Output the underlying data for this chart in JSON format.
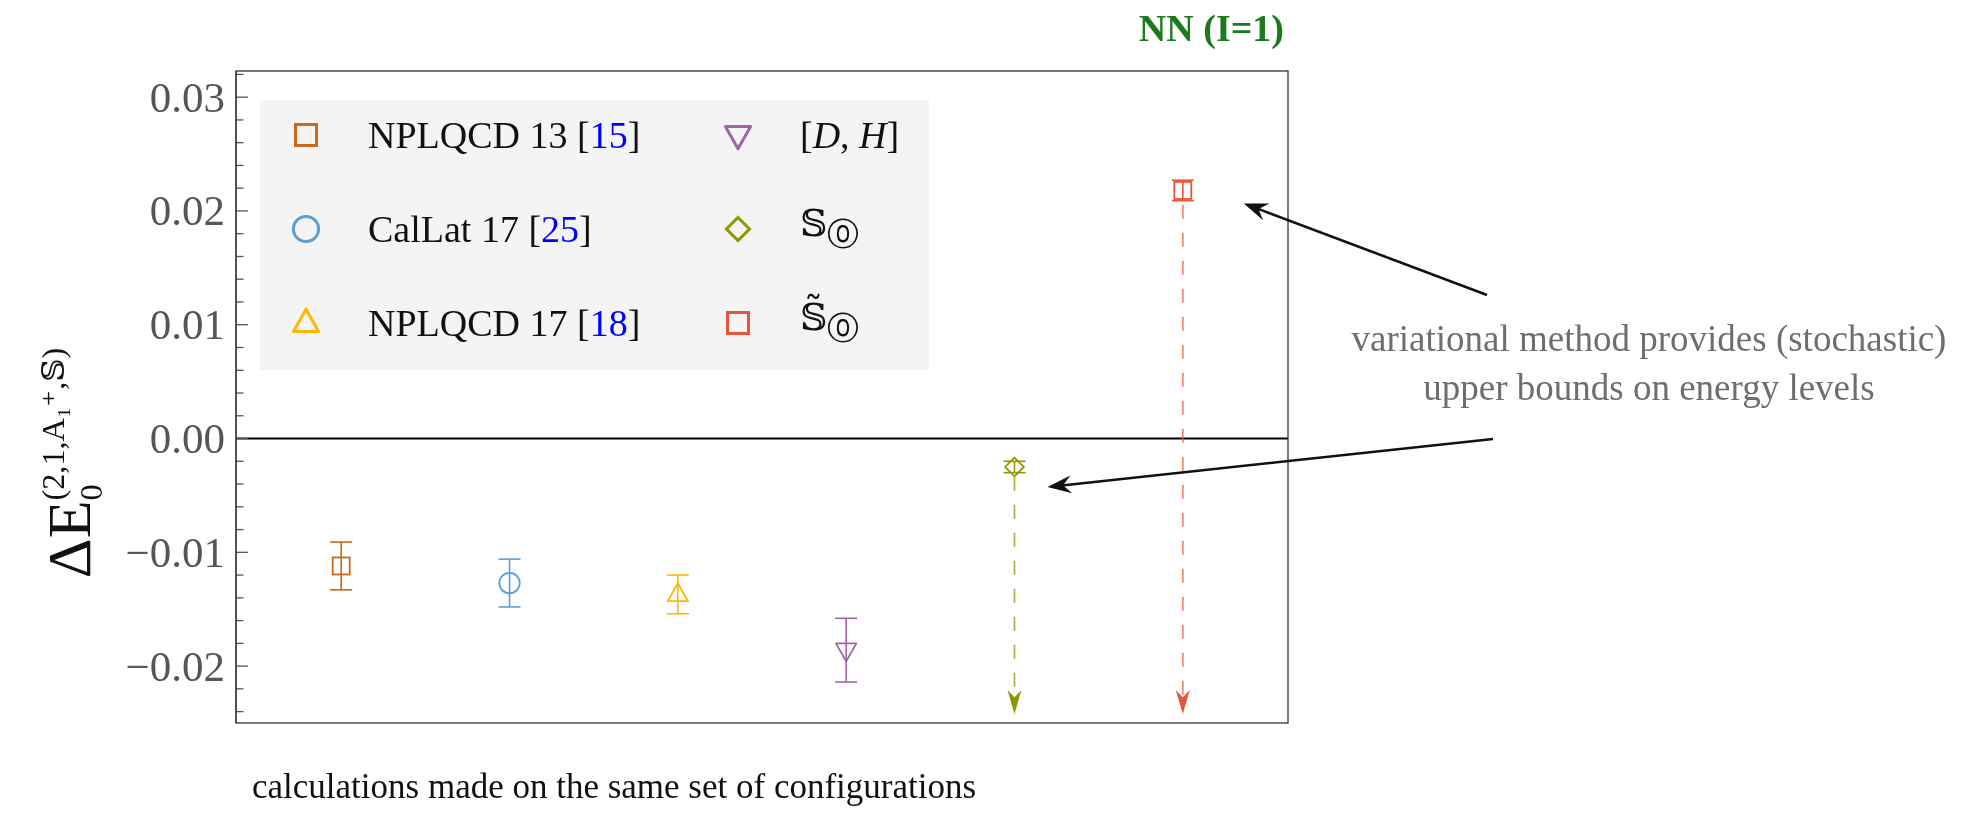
{
  "chart_data": {
    "type": "scatter",
    "title": "NN (I=1)",
    "xlabel": "calculations made on the same set of configurations",
    "ylabel": "ΔE$_{0}$$^{(2,1,A₁⁺,𝕊)}$",
    "annotations": [
      "variational method provides (stochastic) upper bounds on energy levels"
    ],
    "categories": [
      null,
      null,
      null,
      null,
      null,
      null
    ],
    "series": [
      {
        "name": "NPLQCD 13 [15]",
        "color": "#c8691c",
        "marker": "square",
        "values": [
          -0.0112,
          null,
          null,
          null,
          null,
          null
        ],
        "errors": [
          0.0021,
          null,
          null,
          null,
          null,
          null
        ]
      },
      {
        "name": "CalLat 17 [25]",
        "color": "#5e9fd1",
        "marker": "circle",
        "values": [
          null,
          -0.0127,
          null,
          null,
          null,
          null
        ],
        "errors": [
          null,
          0.0021,
          null,
          null,
          null,
          null
        ]
      },
      {
        "name": "NPLQCD 17 [18]",
        "color": "#fbb900",
        "marker": "triangle",
        "values": [
          null,
          null,
          -0.0137,
          null,
          null,
          null
        ],
        "errors": [
          null,
          null,
          0.0017,
          null,
          null,
          null
        ]
      },
      {
        "name": "[D, H]",
        "color": "#a463a8",
        "marker": "triangle-down",
        "values": [
          null,
          null,
          null,
          -0.0186,
          null,
          null
        ],
        "errors": [
          null,
          null,
          null,
          0.0028,
          null,
          null
        ]
      },
      {
        "name": "𝕊$_{⓪}$",
        "color": "#8f9800",
        "marker": "diamond",
        "line_style": "dashed",
        "values": [
          null,
          null,
          null,
          null,
          -0.0025,
          null
        ],
        "errors": [
          null,
          null,
          null,
          null,
          0.0005,
          null
        ]
      },
      {
        "name": "𝕊̃$_{⓪}$",
        "color": "#e8553a",
        "marker": "square",
        "line_style": "dashed",
        "values": [
          null,
          null,
          null,
          null,
          null,
          0.0218
        ],
        "errors": [
          null,
          null,
          null,
          null,
          null,
          0.0009
        ]
      }
    ],
    "ylim": [
      -0.025,
      0.0323
    ],
    "yticks": [
      {
        "value": -0.024,
        "label": null
      },
      {
        "value": -0.022,
        "label": null
      },
      {
        "value": -0.02,
        "label": "−0.02"
      },
      {
        "value": -0.018,
        "label": null
      },
      {
        "value": -0.016,
        "label": null
      },
      {
        "value": -0.014,
        "label": null
      },
      {
        "value": -0.012,
        "label": null
      },
      {
        "value": -0.01,
        "label": "−0.01"
      },
      {
        "value": -0.008,
        "label": null
      },
      {
        "value": -0.006,
        "label": null
      },
      {
        "value": -0.004,
        "label": null
      },
      {
        "value": -0.002,
        "label": null
      },
      {
        "value": 0,
        "label": "0.00"
      },
      {
        "value": 0.002,
        "label": null
      },
      {
        "value": 0.004,
        "label": null
      },
      {
        "value": 0.006,
        "label": null
      },
      {
        "value": 0.008,
        "label": null
      },
      0.01,
      {
        "value": 0.012,
        "label": null
      },
      {
        "value": 0.014,
        "label": null
      },
      {
        "value": 0.016,
        "label": null
      },
      {
        "value": 0.018,
        "label": null
      },
      0.02,
      {
        "value": 0.022,
        "label": null
      },
      {
        "value": 0.024,
        "label": null
      },
      {
        "value": 0.026,
        "label": null
      },
      {
        "value": 0.028,
        "label": null
      },
      0.03,
      {
        "value": 0.032,
        "label": null
      }
    ],
    "ref_lines": [
      {
        "axis": "y",
        "value": 0,
        "color": "#000000"
      }
    ],
    "legend": "top left",
    "tick_labels": "y"
  }
}
